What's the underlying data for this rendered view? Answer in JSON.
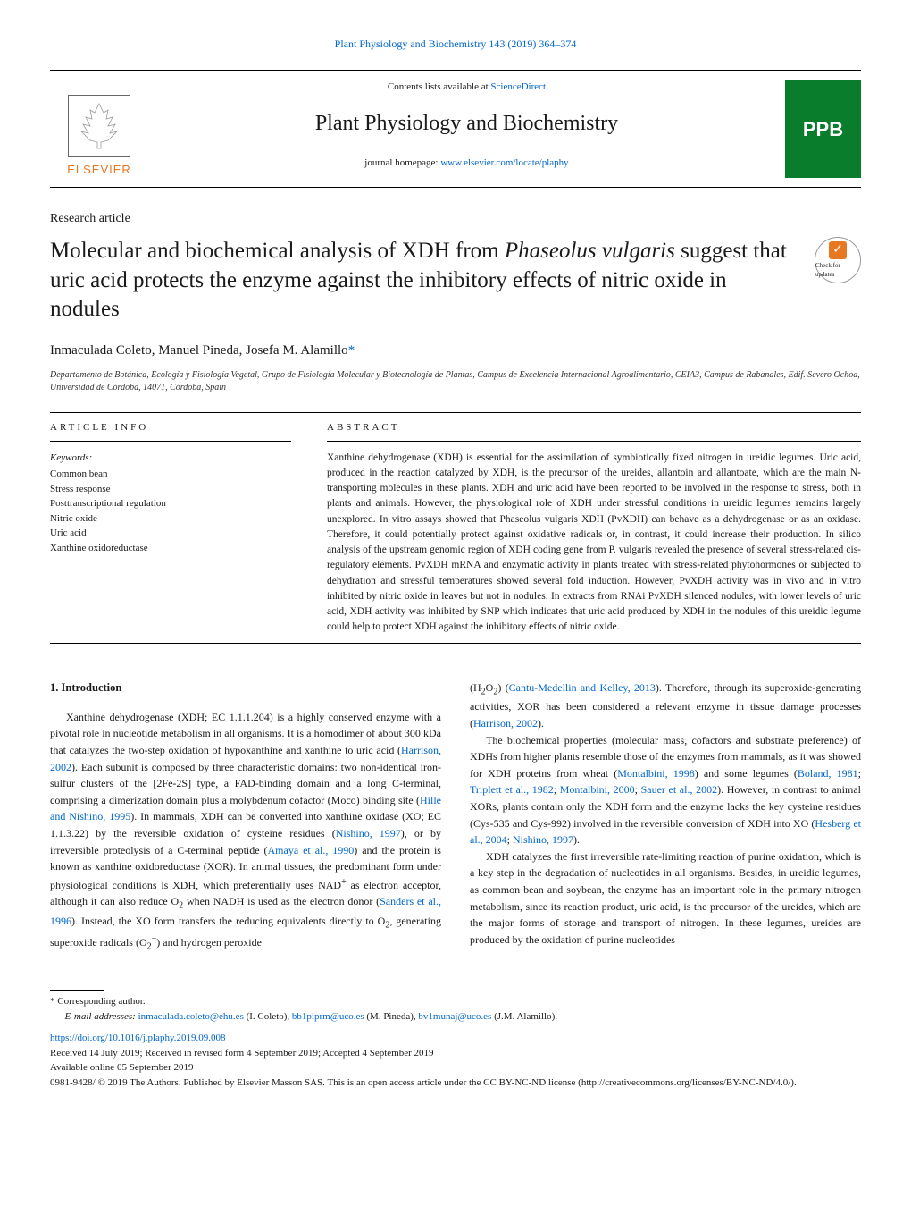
{
  "journal_ref": {
    "text": "Plant Physiology and Biochemistry 143 (2019) 364–374",
    "color": "#0066cc"
  },
  "header": {
    "contents_prefix": "Contents lists available at ",
    "contents_link": "ScienceDirect",
    "journal_title": "Plant Physiology and Biochemistry",
    "homepage_prefix": "journal homepage: ",
    "homepage_link": "www.elsevier.com/locate/plaphy",
    "publisher_logo_text": "ELSEVIER",
    "publisher_logo_color": "#e87722",
    "cover_text": "PPB",
    "cover_bg": "#0a7d2c",
    "cover_text_color": "#ffffff"
  },
  "article": {
    "type": "Research article",
    "title": "Molecular and biochemical analysis of XDH from Phaseolus vulgaris suggest that uric acid protects the enzyme against the inhibitory effects of nitric oxide in nodules",
    "badge_label": "Check for updates",
    "badge_color": "#e87722",
    "authors": "Inmaculada Coleto, Manuel Pineda, Josefa M. Alamillo",
    "authors_marker": "*",
    "affiliation": "Departamento de Botánica, Ecología y Fisiología Vegetal, Grupo de Fisiología Molecular y Biotecnología de Plantas, Campus de Excelencia Internacional Agroalimentario, CEIA3, Campus de Rabanales, Edif. Severo Ochoa, Universidad de Córdoba, 14071, Córdoba, Spain"
  },
  "info": {
    "header": "ARTICLE INFO",
    "keywords_label": "Keywords:",
    "keywords": [
      "Common bean",
      "Stress response",
      "Posttranscriptional regulation",
      "Nitric oxide",
      "Uric acid",
      "Xanthine oxidoreductase"
    ]
  },
  "abstract": {
    "header": "ABSTRACT",
    "text": "Xanthine dehydrogenase (XDH) is essential for the assimilation of symbiotically fixed nitrogen in ureidic legumes. Uric acid, produced in the reaction catalyzed by XDH, is the precursor of the ureides, allantoin and allantoate, which are the main N-transporting molecules in these plants. XDH and uric acid have been reported to be involved in the response to stress, both in plants and animals. However, the physiological role of XDH under stressful conditions in ureidic legumes remains largely unexplored. In vitro assays showed that Phaseolus vulgaris XDH (PvXDH) can behave as a dehydrogenase or as an oxidase. Therefore, it could potentially protect against oxidative radicals or, in contrast, it could increase their production. In silico analysis of the upstream genomic region of XDH coding gene from P. vulgaris revealed the presence of several stress-related cis-regulatory elements. PvXDH mRNA and enzymatic activity in plants treated with stress-related phytohormones or subjected to dehydration and stressful temperatures showed several fold induction. However, PvXDH activity was in vivo and in vitro inhibited by nitric oxide in leaves but not in nodules. In extracts from RNAi PvXDH silenced nodules, with lower levels of uric acid, XDH activity was inhibited by SNP which indicates that uric acid produced by XDH in the nodules of this ureidic legume could help to protect XDH against the inhibitory effects of nitric oxide."
  },
  "body": {
    "section_number": "1.",
    "section_title": "Introduction",
    "col1_html": "Xanthine dehydrogenase (XDH; EC 1.1.1.204) is a highly conserved enzyme with a pivotal role in nucleotide metabolism in all organisms. It is a homodimer of about 300 kDa that catalyzes the two-step oxidation of hypoxanthine and xanthine to uric acid (<a href='#'>Harrison, 2002</a>). Each subunit is composed by three characteristic domains: two non-identical iron-sulfur clusters of the [2Fe-2S] type, a FAD-binding domain and a long C-terminal, comprising a dimerization domain plus a molybdenum cofactor (Moco) binding site (<a href='#'>Hille and Nishino, 1995</a>). In mammals, XDH can be converted into xanthine oxidase (XO; EC 1.1.3.22) by the reversible oxidation of cysteine residues (<a href='#'>Nishino, 1997</a>), or by irreversible proteolysis of a C-terminal peptide (<a href='#'>Amaya et al., 1990</a>) and the protein is known as xanthine oxidoreductase (XOR). In animal tissues, the predominant form under physiological conditions is XDH, which preferentially uses NAD<sup>+</sup> as electron acceptor, although it can also reduce O<sub>2</sub> when NADH is used as the electron donor (<a href='#'>Sanders et al., 1996</a>). Instead, the XO form transfers the reducing equivalents directly to O<sub>2</sub>, generating superoxide radicals (O<sub>2</sub><sup>−</sup>) and hydrogen peroxide",
    "col2_html": "(H<sub>2</sub>O<sub>2</sub>) (<a href='#'>Cantu-Medellin and Kelley, 2013</a>). Therefore, through its superoxide-generating activities, XOR has been considered a relevant enzyme in tissue damage processes (<a href='#'>Harrison, 2002</a>).<br><span style='display:inline-block;width:1.5em'></span>The biochemical properties (molecular mass, cofactors and substrate preference) of XDHs from higher plants resemble those of the enzymes from mammals, as it was showed for XDH proteins from wheat (<a href='#'>Montalbini, 1998</a>) and some legumes (<a href='#'>Boland, 1981</a>; <a href='#'>Triplett et al., 1982</a>; <a href='#'>Montalbini, 2000</a>; <a href='#'>Sauer et al., 2002</a>). However, in contrast to animal XORs, plants contain only the XDH form and the enzyme lacks the key cysteine residues (Cys-535 and Cys-992) involved in the reversible conversion of XDH into XO (<a href='#'>Hesberg et al., 2004</a>; <a href='#'>Nishino, 1997</a>).<br><span style='display:inline-block;width:1.5em'></span>XDH catalyzes the first irreversible rate-limiting reaction of purine oxidation, which is a key step in the degradation of nucleotides in all organisms. Besides, in ureidic legumes, as common bean and soybean, the enzyme has an important role in the primary nitrogen metabolism, since its reaction product, uric acid, is the precursor of the ureides, which are the major forms of storage and transport of nitrogen. In these legumes, ureides are produced by the oxidation of purine nucleotides"
  },
  "footer": {
    "corresponding": "* Corresponding author.",
    "email_label": "E-mail addresses: ",
    "emails_html": "<a href='#'>inmaculada.coleto@ehu.es</a> (I. Coleto), <a href='#'>bb1piprm@uco.es</a> (M. Pineda), <a href='#'>bv1munaj@uco.es</a> (J.M. Alamillo).",
    "doi": "https://doi.org/10.1016/j.plaphy.2019.09.008",
    "received": "Received 14 July 2019; Received in revised form 4 September 2019; Accepted 4 September 2019",
    "available": "Available online 05 September 2019",
    "copyright": "0981-9428/ © 2019 The Authors. Published by Elsevier Masson SAS. This is an open access article under the CC BY-NC-ND license (http://creativecommons.org/licenses/BY-NC-ND/4.0/)."
  },
  "link_color": "#0066cc"
}
